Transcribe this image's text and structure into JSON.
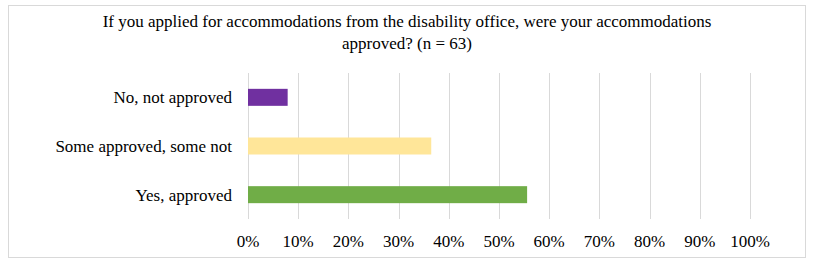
{
  "chart_data": {
    "type": "bar",
    "orientation": "horizontal",
    "title": "If you applied for accommodations from the disability office, were your accommodations approved? (n = 63)",
    "categories": [
      "No, not approved",
      "Some approved, some not",
      "Yes, approved"
    ],
    "values": [
      7.9,
      36.5,
      55.6
    ],
    "colors": [
      "#7030a0",
      "#ffe699",
      "#70ad47"
    ],
    "xlim": [
      0,
      100
    ],
    "xticks": [
      {
        "value": 0,
        "label": "0%"
      },
      {
        "value": 10,
        "label": "10%"
      },
      {
        "value": 20,
        "label": "20%"
      },
      {
        "value": 30,
        "label": "30%"
      },
      {
        "value": 40,
        "label": "40%"
      },
      {
        "value": 50,
        "label": "50%"
      },
      {
        "value": 60,
        "label": "60%"
      },
      {
        "value": 70,
        "label": "70%"
      },
      {
        "value": 80,
        "label": "80%"
      },
      {
        "value": 90,
        "label": "90%"
      },
      {
        "value": 100,
        "label": "100%"
      }
    ],
    "grid": true
  }
}
